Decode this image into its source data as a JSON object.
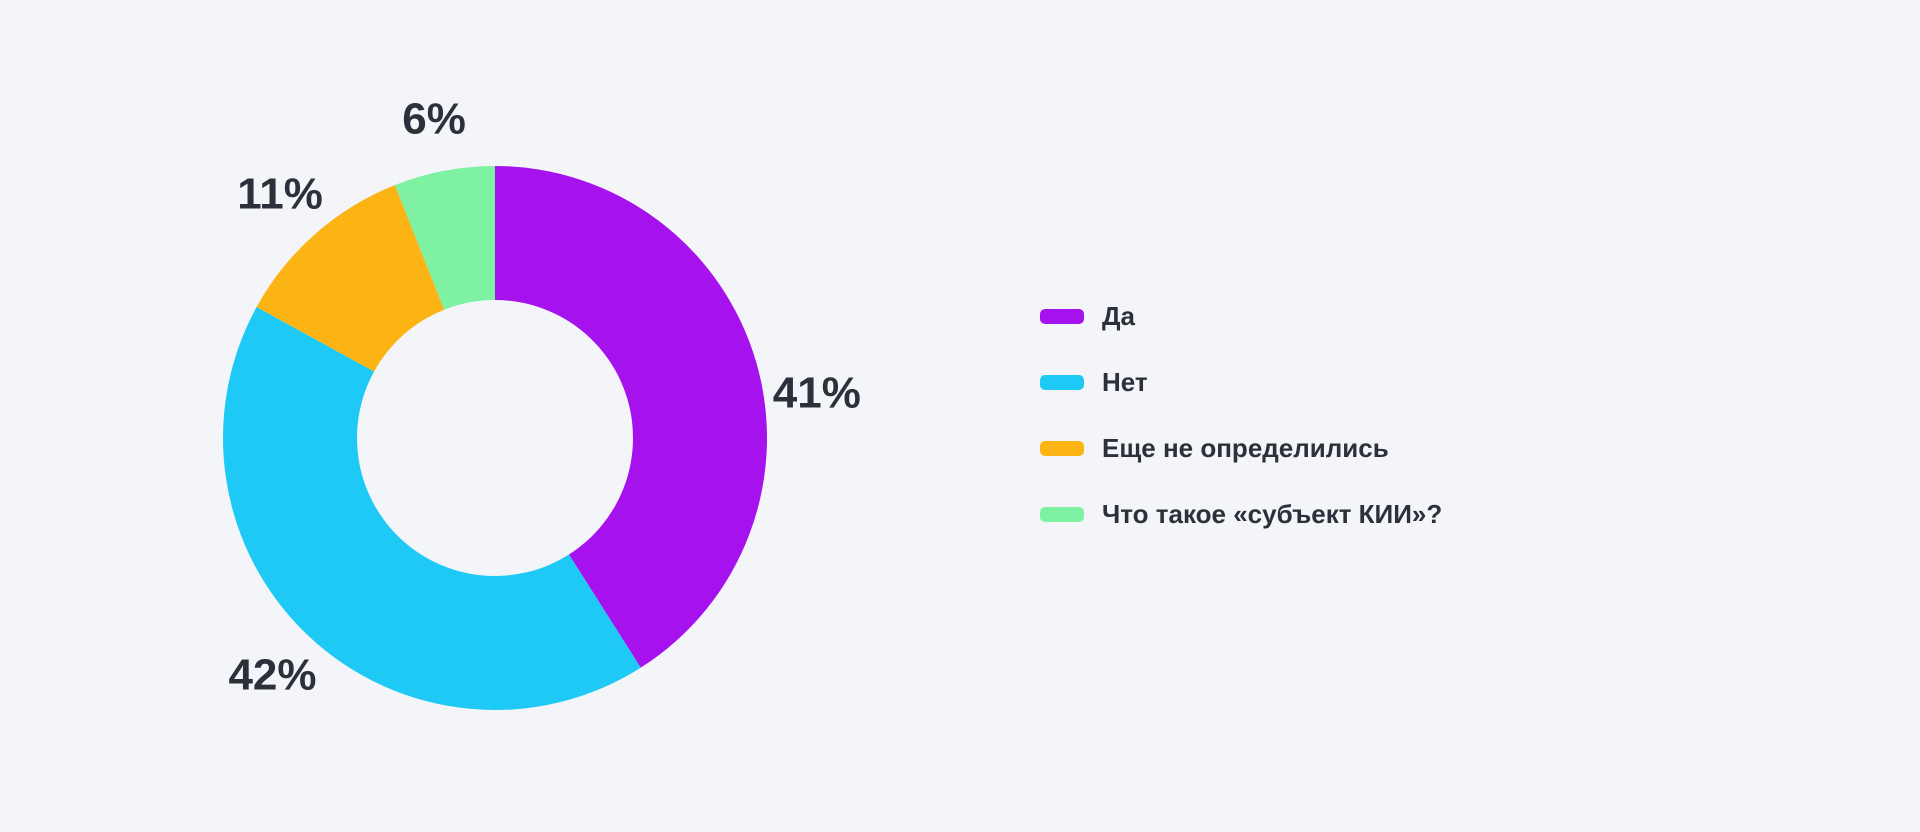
{
  "page": {
    "background": "#f4f5f8",
    "text_color": "#2d2f3a"
  },
  "chart_data": {
    "type": "pie",
    "subtype": "donut",
    "title": "",
    "units": "%",
    "direction": "clockwise",
    "start_angle_deg": 0,
    "legend_position": "right",
    "grid": false,
    "slices": [
      {
        "label": "Да",
        "value": 41,
        "percent_label": "41%",
        "color": "#a512ee"
      },
      {
        "label": "Нет",
        "value": 42,
        "percent_label": "42%",
        "color": "#1ec9f6"
      },
      {
        "label": "Еще не определились",
        "value": 11,
        "percent_label": "11%",
        "color": "#fcb414"
      },
      {
        "label": "Что такое «субъект КИИ»?",
        "value": 6,
        "percent_label": "6%",
        "color": "#7ff1a3"
      }
    ]
  }
}
